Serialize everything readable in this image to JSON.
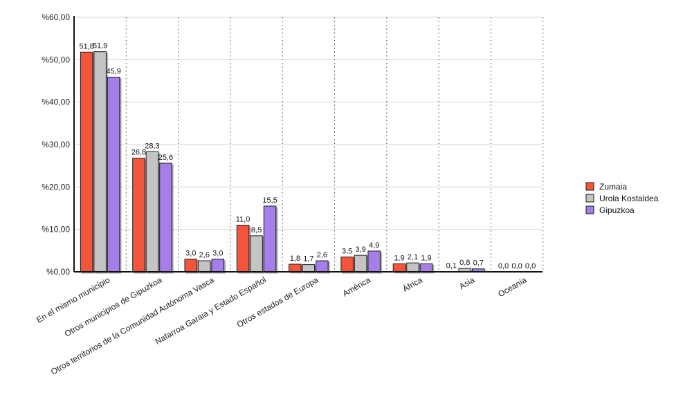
{
  "chart_data": {
    "type": "bar",
    "categories": [
      "En el mismo municipio",
      "Otros municipios de Gipuzkoa",
      "Otros territorios de la Comunidad Autónoma Vasca",
      "Nafarroa Garaia y Estado Español",
      "Otros estados de Europa",
      "América",
      "África",
      "Asia",
      "Oceanía"
    ],
    "series": [
      {
        "name": "Zumaia",
        "color": "#f5543a",
        "values": [
          51.8,
          26.8,
          3.0,
          11.0,
          1.8,
          3.5,
          1.9,
          0.1,
          0.0
        ],
        "labels": [
          "51,8",
          "26,8",
          "3,0",
          "11,0",
          "1,8",
          "3,5",
          "1,9",
          "0,1",
          "0,0"
        ]
      },
      {
        "name": "Urola Kostaldea",
        "color": "#c4c4c4",
        "values": [
          51.9,
          28.3,
          2.6,
          8.5,
          1.7,
          3.9,
          2.1,
          0.8,
          0.0
        ],
        "labels": [
          "51,9",
          "28,3",
          "2,6",
          "8,5",
          "1,7",
          "3,9",
          "2,1",
          "0,8",
          "0,0"
        ]
      },
      {
        "name": "Gipuzkoa",
        "color": "#a57ee8",
        "values": [
          45.9,
          25.6,
          3.0,
          15.5,
          2.6,
          4.9,
          1.9,
          0.7,
          0.0
        ],
        "labels": [
          "45,9",
          "25,6",
          "3,0",
          "15,5",
          "2,6",
          "4,9",
          "1,9",
          "0,7",
          "0,0"
        ]
      }
    ],
    "yticks": [
      0,
      10,
      20,
      30,
      40,
      50,
      60
    ],
    "ytick_labels": [
      "%0,00",
      "%10,00",
      "%20,00",
      "%30,00",
      "%40,00",
      "%50,00",
      "%60,00"
    ],
    "ylim": [
      0,
      60
    ],
    "grid": true,
    "legend_position": "right"
  }
}
